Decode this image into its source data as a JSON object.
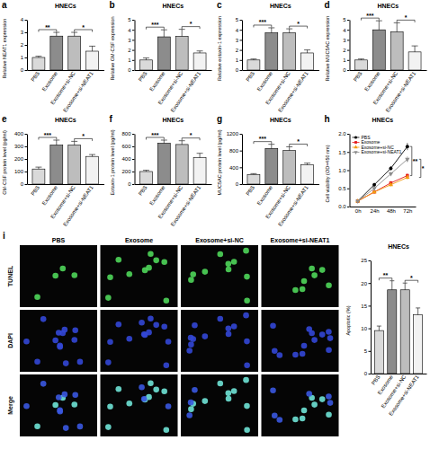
{
  "chart_data": [
    {
      "type": "bar",
      "panel": "a",
      "title": "HNECs",
      "y_label": "Relative NEAT1 expression",
      "categories": [
        "PBS",
        "Exosome",
        "Exosome+si-NC",
        "Exosome+si-NEAT1"
      ],
      "values": [
        1.0,
        2.7,
        2.7,
        1.5
      ],
      "errors": [
        0.1,
        0.3,
        0.3,
        0.4
      ],
      "colors": [
        "#d9d9d9",
        "#8c8c8c",
        "#bdbdbd",
        "#f2f2f2"
      ],
      "ylim": [
        0,
        4
      ],
      "yticks": [
        0,
        1,
        2,
        3,
        4
      ],
      "annotations": [
        {
          "text": "**",
          "from": 0,
          "to": 1
        },
        {
          "text": "*",
          "from": 2,
          "to": 3
        }
      ]
    },
    {
      "type": "bar",
      "panel": "b",
      "title": "HNECs",
      "y_label": "Relative GM-CSF expression",
      "categories": [
        "PBS",
        "Exosome",
        "Exosome+si-NC",
        "Exosome+si-NEAT1"
      ],
      "values": [
        1.0,
        3.3,
        3.35,
        1.7
      ],
      "errors": [
        0.2,
        0.7,
        0.7,
        0.2
      ],
      "colors": [
        "#d9d9d9",
        "#8c8c8c",
        "#bdbdbd",
        "#f2f2f2"
      ],
      "ylim": [
        0,
        5
      ],
      "yticks": [
        0,
        1,
        2,
        3,
        4,
        5
      ],
      "annotations": [
        {
          "text": "***",
          "from": 0,
          "to": 1
        },
        {
          "text": "*",
          "from": 2,
          "to": 3
        }
      ]
    },
    {
      "type": "bar",
      "panel": "c",
      "title": "HNECs",
      "y_label": "Relative eotaxin-1 expression",
      "categories": [
        "PBS",
        "Exosome",
        "Exosome+si-NC",
        "Exosome+si-NEAT1"
      ],
      "values": [
        1.0,
        3.7,
        3.7,
        1.7
      ],
      "errors": [
        0.1,
        0.5,
        0.4,
        0.3
      ],
      "colors": [
        "#d9d9d9",
        "#8c8c8c",
        "#bdbdbd",
        "#f2f2f2"
      ],
      "ylim": [
        0,
        5
      ],
      "yticks": [
        0,
        1,
        2,
        3,
        4,
        5
      ],
      "annotations": [
        {
          "text": "***",
          "from": 0,
          "to": 1
        },
        {
          "text": "*",
          "from": 2,
          "to": 3
        }
      ]
    },
    {
      "type": "bar",
      "panel": "d",
      "title": "HNECs",
      "y_label": "Relative MUC5AC expression",
      "categories": [
        "PBS",
        "Exosome",
        "Exosome+si-NC",
        "Exosome+si-NEAT1"
      ],
      "values": [
        1.0,
        4.0,
        3.8,
        1.8
      ],
      "errors": [
        0.1,
        0.9,
        0.9,
        0.6
      ],
      "colors": [
        "#d9d9d9",
        "#8c8c8c",
        "#bdbdbd",
        "#f2f2f2"
      ],
      "ylim": [
        0,
        5
      ],
      "yticks": [
        0,
        1,
        2,
        3,
        4,
        5
      ],
      "annotations": [
        {
          "text": "***",
          "from": 0,
          "to": 1
        },
        {
          "text": "*",
          "from": 2,
          "to": 3
        }
      ]
    },
    {
      "type": "bar",
      "panel": "e",
      "title": "HNECs",
      "y_label": "GM-CSF protein level (pg/ml)",
      "categories": [
        "PBS",
        "Exosome",
        "Exosome+si-NC",
        "Exosome+si-NEAT1"
      ],
      "values": [
        120,
        310,
        310,
        220
      ],
      "errors": [
        15,
        40,
        30,
        15
      ],
      "colors": [
        "#d9d9d9",
        "#8c8c8c",
        "#bdbdbd",
        "#f2f2f2"
      ],
      "ylim": [
        0,
        400
      ],
      "yticks": [
        0,
        100,
        200,
        300,
        400
      ],
      "annotations": [
        {
          "text": "***",
          "from": 0,
          "to": 1
        },
        {
          "text": "*",
          "from": 2,
          "to": 3
        }
      ]
    },
    {
      "type": "bar",
      "panel": "f",
      "title": "HNECs",
      "y_label": "Eotaxin-1 protein level (pg/ml)",
      "categories": [
        "PBS",
        "Exosome",
        "Exosome+si-NC",
        "Exosome+si-NEAT1"
      ],
      "values": [
        200,
        650,
        630,
        420
      ],
      "errors": [
        20,
        50,
        60,
        70
      ],
      "colors": [
        "#d9d9d9",
        "#8c8c8c",
        "#bdbdbd",
        "#f2f2f2"
      ],
      "ylim": [
        0,
        800
      ],
      "yticks": [
        0,
        200,
        400,
        600,
        800
      ],
      "annotations": [
        {
          "text": "***",
          "from": 0,
          "to": 1
        },
        {
          "text": "*",
          "from": 2,
          "to": 3
        }
      ]
    },
    {
      "type": "bar",
      "panel": "g",
      "title": "HNECs",
      "y_label": "MUC5AC protein level (pg/ml)",
      "categories": [
        "PBS",
        "Exosome",
        "Exosome+si-NC",
        "Exosome+si-NEAT1"
      ],
      "values": [
        230,
        850,
        800,
        460
      ],
      "errors": [
        20,
        100,
        90,
        40
      ],
      "colors": [
        "#d9d9d9",
        "#8c8c8c",
        "#bdbdbd",
        "#f2f2f2"
      ],
      "ylim": [
        0,
        1200
      ],
      "yticks": [
        0,
        400,
        800,
        1200
      ],
      "annotations": [
        {
          "text": "***",
          "from": 0,
          "to": 1
        },
        {
          "text": "*",
          "from": 2,
          "to": 3
        }
      ]
    },
    {
      "type": "line",
      "panel": "h",
      "title": "HNECs",
      "y_label": "Cell viability (OD=450 nm)",
      "categories": [
        "0h",
        "24h",
        "48h",
        "72h"
      ],
      "series": [
        {
          "name": "PBS",
          "color": "#000000",
          "marker": "circle",
          "line_style": "solid",
          "values": [
            0.15,
            0.6,
            1.05,
            1.65
          ],
          "errors": [
            0.02,
            0.05,
            0.06,
            0.1
          ]
        },
        {
          "name": "Exosome",
          "color": "#e41a1c",
          "marker": "square",
          "line_style": "solid",
          "values": [
            0.15,
            0.4,
            0.65,
            0.85
          ],
          "errors": [
            0.02,
            0.04,
            0.05,
            0.06
          ]
        },
        {
          "name": "Exosome+si-NC",
          "color": "#f39c12",
          "marker": "triangle",
          "line_style": "solid",
          "values": [
            0.15,
            0.4,
            0.6,
            0.8
          ],
          "errors": [
            0.02,
            0.04,
            0.05,
            0.06
          ]
        },
        {
          "name": "Exosome+si-NEAT1",
          "color": "#8c8c8c",
          "marker": "triangle-down",
          "line_style": "solid",
          "values": [
            0.15,
            0.5,
            0.9,
            1.3
          ],
          "errors": [
            0.02,
            0.05,
            0.06,
            0.08
          ]
        }
      ],
      "ylim": [
        0,
        2
      ],
      "yticks": [
        {
          "value": 0,
          "label": "0.0"
        },
        0.5,
        {
          "value": 1,
          "label": "1.0"
        },
        1.5,
        {
          "value": 2,
          "label": "2.0"
        }
      ],
      "legend": "upper-left",
      "annotations": [
        {
          "text": "**",
          "from": 0,
          "to": 1
        },
        {
          "text": "*",
          "from": 2,
          "to": 3
        }
      ]
    },
    {
      "type": "bar",
      "title": "HNECs",
      "y_label": "Apoptotic (%)",
      "categories": [
        "PBS",
        "Exosome",
        "Exosome+si-NC",
        "Exosome+si-NEAT1"
      ],
      "values": [
        9.5,
        18.5,
        18.5,
        13
      ],
      "errors": [
        1,
        2,
        1.5,
        1.5
      ],
      "colors": [
        "#d9d9d9",
        "#8c8c8c",
        "#bdbdbd",
        "#f2f2f2"
      ],
      "ylim": [
        0,
        25
      ],
      "yticks": [
        0,
        5,
        10,
        15,
        20,
        25
      ],
      "annotations": [
        {
          "text": "**",
          "from": 0,
          "to": 1
        },
        {
          "text": "*",
          "from": 2,
          "to": 3
        }
      ]
    }
  ],
  "micrographs": {
    "panel": "i",
    "columns": [
      "PBS",
      "Exosome",
      "Exosome+si-NC",
      "Exosome+si-NEAT1"
    ],
    "rows": [
      "TUNEL",
      "DAPI",
      "Merge"
    ]
  }
}
